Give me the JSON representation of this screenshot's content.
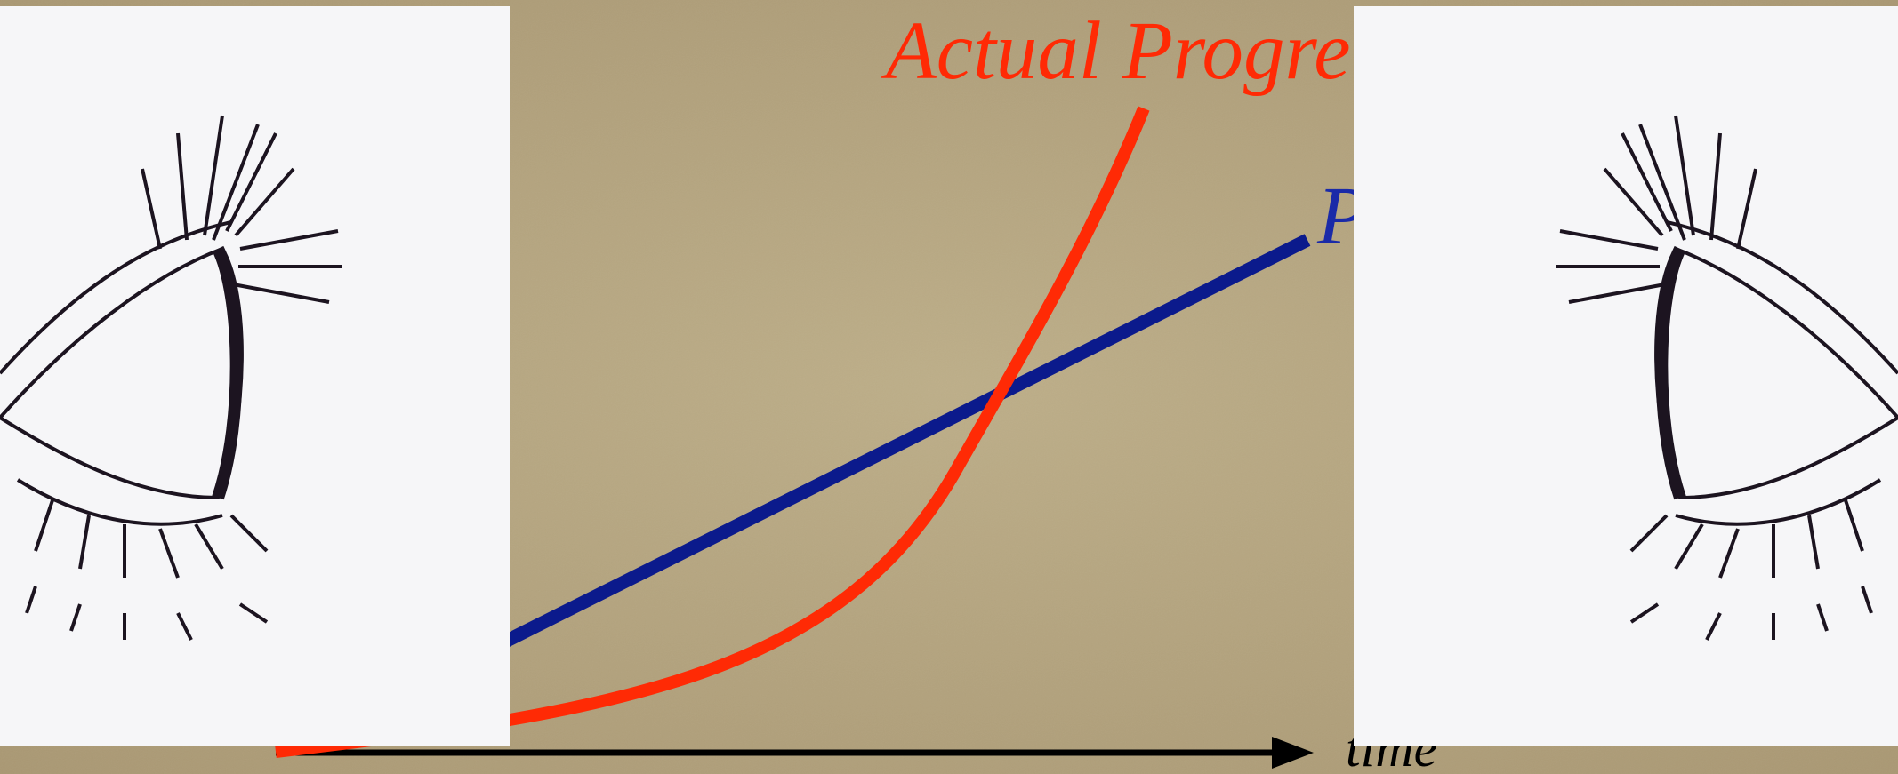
{
  "slide": {
    "curve_label": "Actual Progre",
    "line_label": "P",
    "axis_label": "time"
  }
}
